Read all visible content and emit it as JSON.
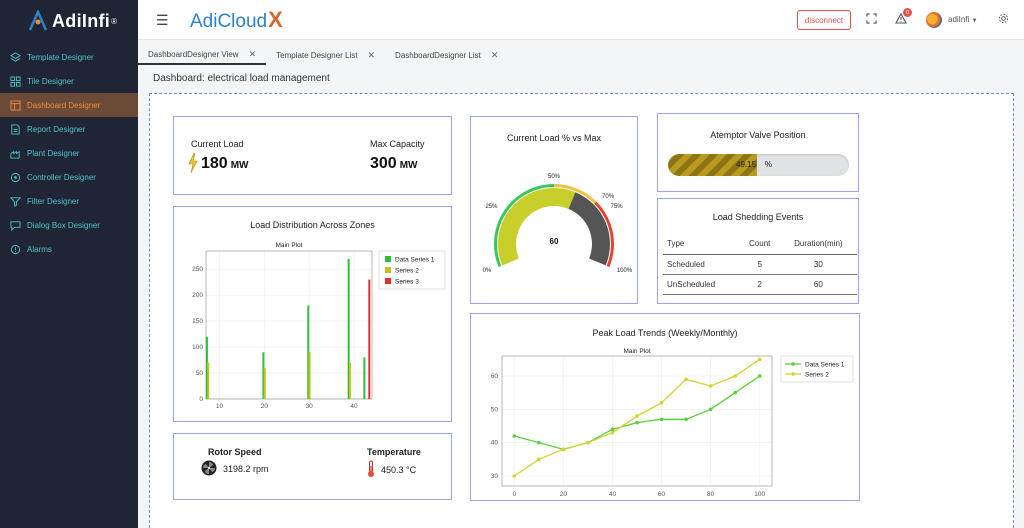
{
  "app": {
    "logo_text": "AdiInfi",
    "logo_reg": "®",
    "brand": "AdiCloud",
    "brand_x": "X"
  },
  "sidebar": {
    "items": [
      {
        "label": "Template Designer",
        "icon": "layers-icon",
        "active": false
      },
      {
        "label": "Tile Designer",
        "icon": "grid-icon",
        "active": false
      },
      {
        "label": "Dashboard Designer",
        "icon": "dashboard-icon",
        "active": true
      },
      {
        "label": "Report Designer",
        "icon": "report-icon",
        "active": false
      },
      {
        "label": "Plant Designer",
        "icon": "plant-icon",
        "active": false
      },
      {
        "label": "Controller Designer",
        "icon": "controller-icon",
        "active": false
      },
      {
        "label": "Filter Designer",
        "icon": "filter-icon",
        "active": false
      },
      {
        "label": "Dialog Box Designer",
        "icon": "dialog-icon",
        "active": false
      },
      {
        "label": "Alarms",
        "icon": "alarm-icon",
        "active": false
      }
    ]
  },
  "header": {
    "disconnect_label": "disconnect",
    "notification_count": "0",
    "username": "adiInfi"
  },
  "tabs": [
    {
      "label": "DashboardDesigner View",
      "active": true
    },
    {
      "label": "Template Designer List",
      "active": false
    },
    {
      "label": "DashboardDesigner List",
      "active": false
    }
  ],
  "page_title": "Dashboard: electrical load management",
  "load_card": {
    "current_label": "Current Load",
    "current_value": "180",
    "current_unit": "MW",
    "max_label": "Max Capacity",
    "max_value": "300",
    "max_unit": "MW"
  },
  "gauge": {
    "title": "Current Load % vs Max",
    "value": 60,
    "value_text": "60",
    "ticks": [
      "0%",
      "25%",
      "50%",
      "70%",
      "75%",
      "100%"
    ]
  },
  "valve": {
    "title": "Atemptor Valve Position",
    "value": 49.15,
    "value_text": "49.15",
    "unit": "%"
  },
  "events": {
    "title": "Load Shedding Events",
    "columns": [
      "Type",
      "Count",
      "Duration(min)"
    ],
    "rows": [
      [
        "Scheduled",
        "5",
        "30"
      ],
      [
        "UnScheduled",
        "2",
        "60"
      ]
    ]
  },
  "rotor": {
    "speed_label": "Rotor Speed",
    "speed_value": "3198.2",
    "speed_unit": "rpm",
    "temp_label": "Temperature",
    "temp_value": "450.3",
    "temp_unit": "°C"
  },
  "chart_data": [
    {
      "type": "bar",
      "card_title": "Load Distribution Across Zones",
      "title": "Main Plot",
      "xticks": [
        10,
        20,
        30,
        40
      ],
      "yticks": [
        0,
        50,
        100,
        150,
        200,
        250
      ],
      "xlim": [
        7,
        44
      ],
      "ylim": [
        0,
        285
      ],
      "legend": "top-right",
      "series": [
        {
          "name": "Data Series 1",
          "color": "#2fbf3a",
          "x": [
            7.2,
            19.8,
            29.8,
            38.8,
            42.3
          ],
          "values": [
            120,
            90,
            180,
            270,
            80
          ]
        },
        {
          "name": "Series 2",
          "color": "#c8c21c",
          "x": [
            7.5,
            20.1,
            30.1,
            39.1
          ],
          "values": [
            70,
            60,
            90,
            70
          ]
        },
        {
          "name": "Series 3",
          "color": "#e0302a",
          "x": [
            43.4
          ],
          "values": [
            230
          ]
        }
      ]
    },
    {
      "type": "line",
      "card_title": "Peak Load Trends (Weekly/Monthly)",
      "title": "Main Plot",
      "xticks": [
        0,
        20,
        40,
        60,
        80,
        100
      ],
      "yticks": [
        30,
        40,
        50,
        60
      ],
      "xlim": [
        -5,
        105
      ],
      "ylim": [
        27,
        66
      ],
      "legend": "top-right",
      "x": [
        0,
        10,
        20,
        30,
        40,
        50,
        60,
        70,
        80,
        90,
        100
      ],
      "series": [
        {
          "name": "Data Series 1",
          "color": "#5ccf3a",
          "values": [
            42,
            40,
            38,
            40,
            44,
            46,
            47,
            47,
            50,
            55,
            60
          ]
        },
        {
          "name": "Series 2",
          "color": "#d7d22d",
          "values": [
            30,
            35,
            38,
            40,
            43,
            48,
            52,
            59,
            57,
            60,
            65
          ]
        }
      ]
    }
  ]
}
